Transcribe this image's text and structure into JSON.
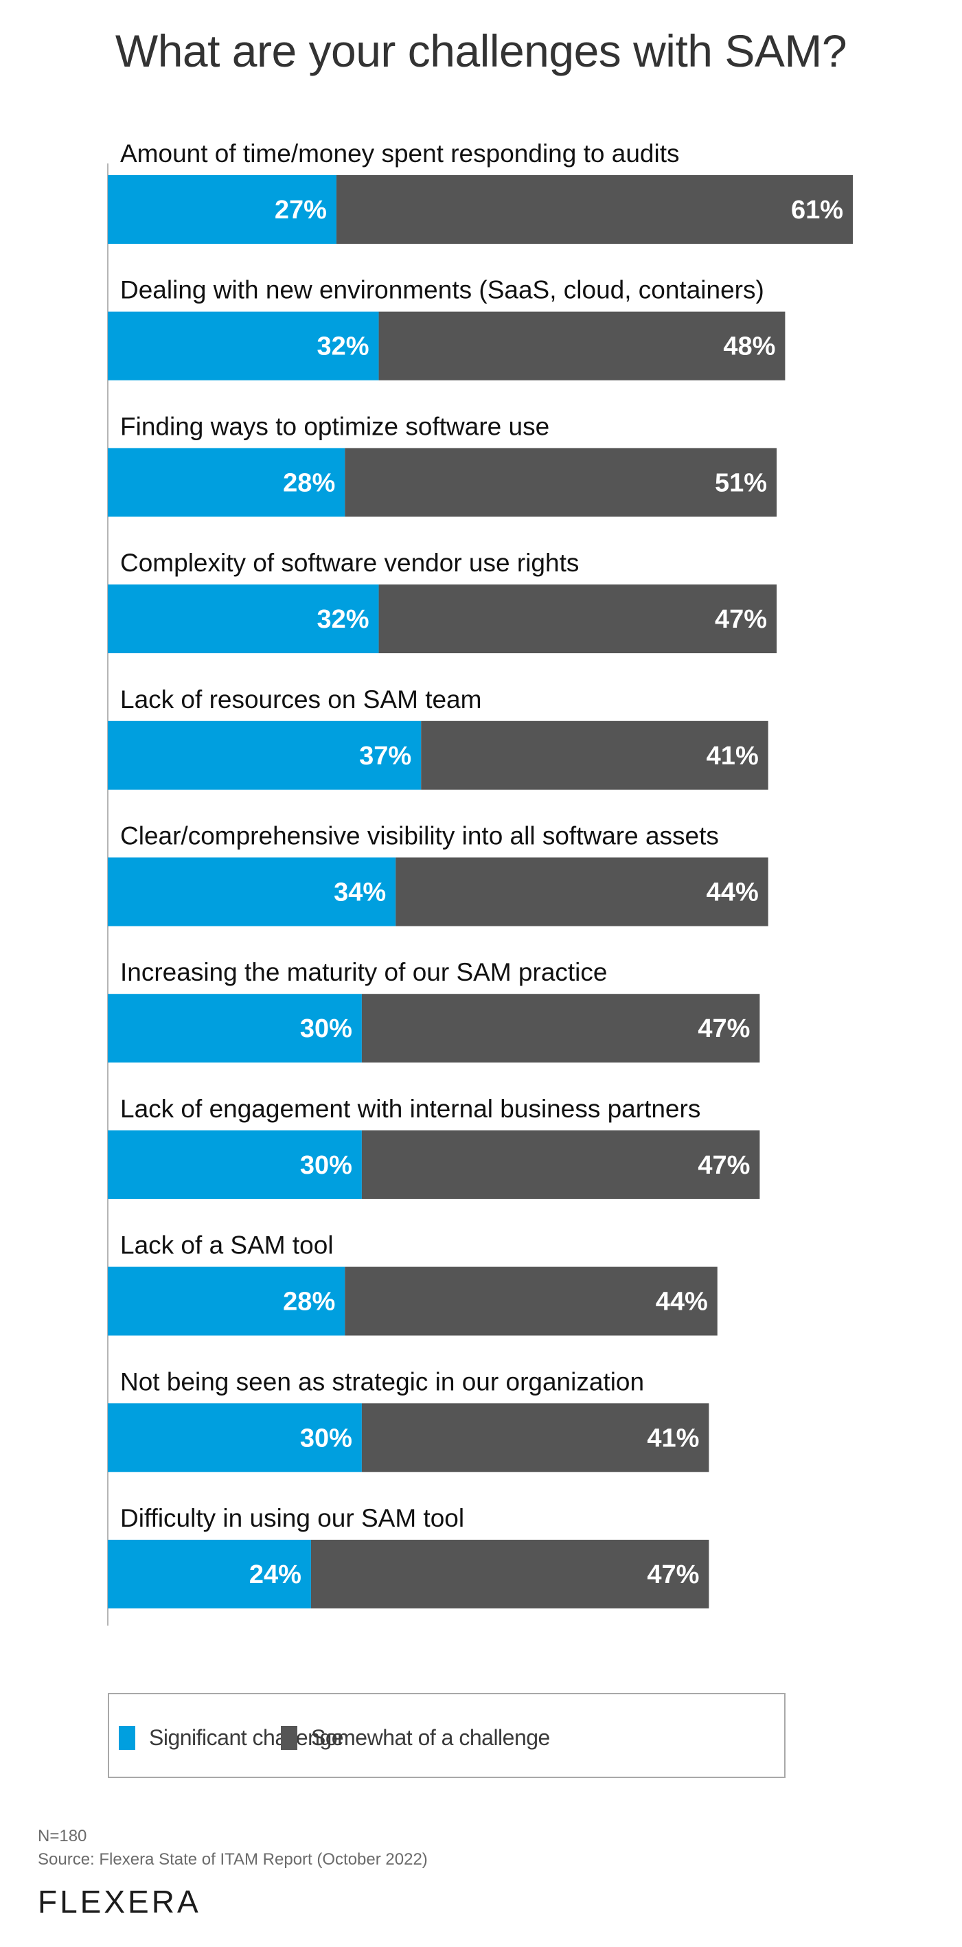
{
  "chart_data": {
    "type": "bar",
    "orientation": "horizontal",
    "stacked": true,
    "title": "What are your challenges with SAM?",
    "xlabel": "",
    "ylabel": "",
    "xlim": [
      0,
      100
    ],
    "grid": false,
    "legend_position": "bottom",
    "categories": [
      "Amount of time/money spent responding to audits",
      "Dealing with new environments (SaaS, cloud, containers)",
      "Finding ways to optimize software use",
      "Complexity of software vendor use rights",
      "Lack of resources on SAM team",
      "Clear/comprehensive visibility into all software assets",
      "Increasing the maturity of our SAM practice",
      "Lack of engagement with internal business partners",
      "Lack of a SAM tool",
      "Not being seen as strategic in our organization",
      "Difficulty in using our SAM tool"
    ],
    "series": [
      {
        "name": "Significant challenge",
        "color": "#009fdf",
        "values": [
          27,
          32,
          28,
          32,
          37,
          34,
          30,
          30,
          28,
          30,
          24
        ]
      },
      {
        "name": "Somewhat of a challenge",
        "color": "#555555",
        "values": [
          61,
          48,
          51,
          47,
          41,
          44,
          47,
          47,
          44,
          41,
          47
        ]
      }
    ],
    "value_suffix": "%"
  },
  "footer": {
    "sample_size": "N=180",
    "source": "Source: Flexera State of ITAM Report (October 2022)"
  },
  "brand": {
    "logo_text": "FLEXERA"
  }
}
